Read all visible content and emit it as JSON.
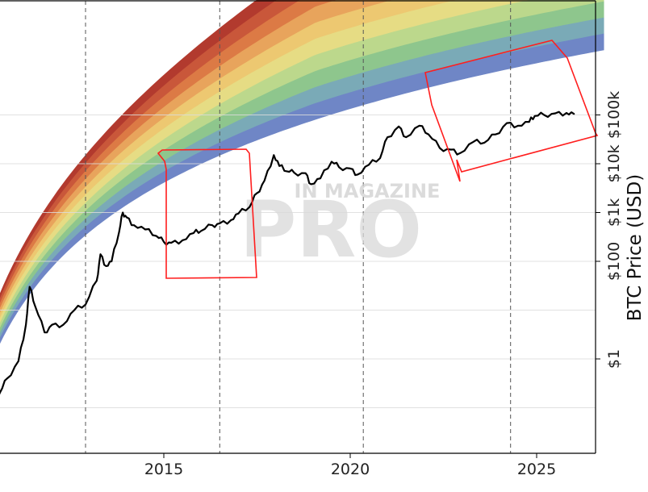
{
  "chart_data": {
    "type": "line",
    "title": "",
    "ylabel": "BTC Price (USD)",
    "y_scale": "log",
    "ylim": [
      0.02,
      500000
    ],
    "xlim": [
      2010.0,
      2026.8
    ],
    "x_ticks": [
      2015,
      2020,
      2025
    ],
    "x_tick_labels": [
      "2015",
      "2020",
      "2025"
    ],
    "y_ticks": [
      1,
      100,
      1000,
      10000,
      100000
    ],
    "y_tick_labels": [
      "$1",
      "$100",
      "$1k",
      "$10k",
      "$100k"
    ],
    "vertical_dashed_lines": [
      2012.9,
      2016.5,
      2020.35,
      2024.3
    ],
    "grid": true,
    "legend": "none",
    "watermark": {
      "top": "IN MAGAZINE",
      "main": "PRO"
    },
    "rainbow_bands": {
      "colors": [
        "#b23a2e",
        "#c9573a",
        "#dc7a45",
        "#e8a45c",
        "#edc871",
        "#e6dc84",
        "#bcd88c",
        "#8ec68d",
        "#7aaab7",
        "#6f86c6"
      ]
    },
    "series": [
      {
        "color": "#000000",
        "x": [
          2010.0,
          2010.3,
          2010.6,
          2010.8,
          2011.1,
          2011.3,
          2011.4,
          2011.55,
          2011.8,
          2012.0,
          2012.3,
          2012.6,
          2012.9,
          2013.2,
          2013.3,
          2013.45,
          2013.6,
          2013.8,
          2013.9,
          2014.0,
          2014.2,
          2014.5,
          2014.8,
          2015.0,
          2015.2,
          2015.5,
          2015.8,
          2016.0,
          2016.3,
          2016.5,
          2016.8,
          2017.0,
          2017.3,
          2017.5,
          2017.7,
          2017.95,
          2018.1,
          2018.3,
          2018.5,
          2018.8,
          2018.95,
          2019.2,
          2019.5,
          2019.7,
          2020.0,
          2020.2,
          2020.5,
          2020.8,
          2021.0,
          2021.3,
          2021.5,
          2021.85,
          2022.1,
          2022.4,
          2022.7,
          2022.95,
          2023.3,
          2023.6,
          2023.9,
          2024.2,
          2024.5,
          2024.8,
          2024.95,
          2025.2,
          2025.5,
          2025.8,
          2026.0
        ],
        "values": [
          0.06,
          0.07,
          0.2,
          0.4,
          0.9,
          5,
          30,
          12,
          3.5,
          5,
          5,
          10,
          13,
          40,
          140,
          80,
          100,
          400,
          1000,
          800,
          550,
          450,
          330,
          250,
          240,
          270,
          380,
          420,
          550,
          600,
          700,
          950,
          1300,
          2500,
          4500,
          15000,
          9000,
          7000,
          6500,
          6400,
          3800,
          5000,
          11000,
          8500,
          8000,
          6000,
          9500,
          13000,
          35000,
          58000,
          35000,
          60000,
          40000,
          21000,
          19500,
          16500,
          28000,
          27000,
          40000,
          68000,
          60000,
          72000,
          95000,
          100000,
          108000,
          110000,
          105000
        ]
      }
    ]
  }
}
